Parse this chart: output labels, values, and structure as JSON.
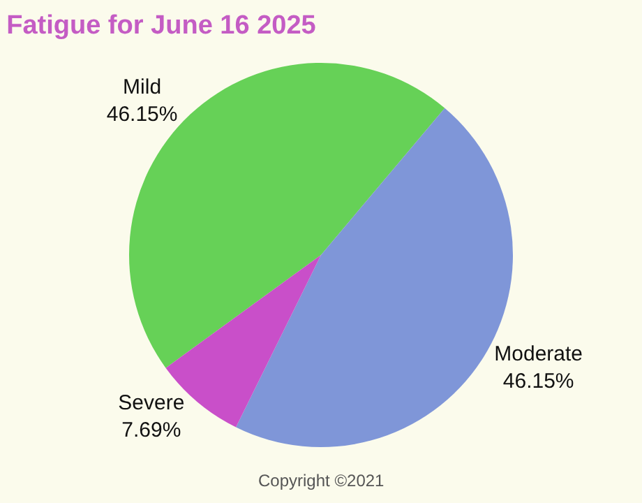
{
  "chart_data": {
    "type": "pie",
    "title": "Fatigue for June 16 2025",
    "categories": [
      "Mild",
      "Moderate",
      "Severe"
    ],
    "values": [
      46.15,
      46.15,
      7.69
    ],
    "value_labels": [
      "46.15%",
      "46.15%",
      "7.69%"
    ],
    "colors": [
      "#66d157",
      "#7f96d8",
      "#c94fc9"
    ],
    "legend": false,
    "annotations": [
      "Copyright ©2021"
    ]
  }
}
